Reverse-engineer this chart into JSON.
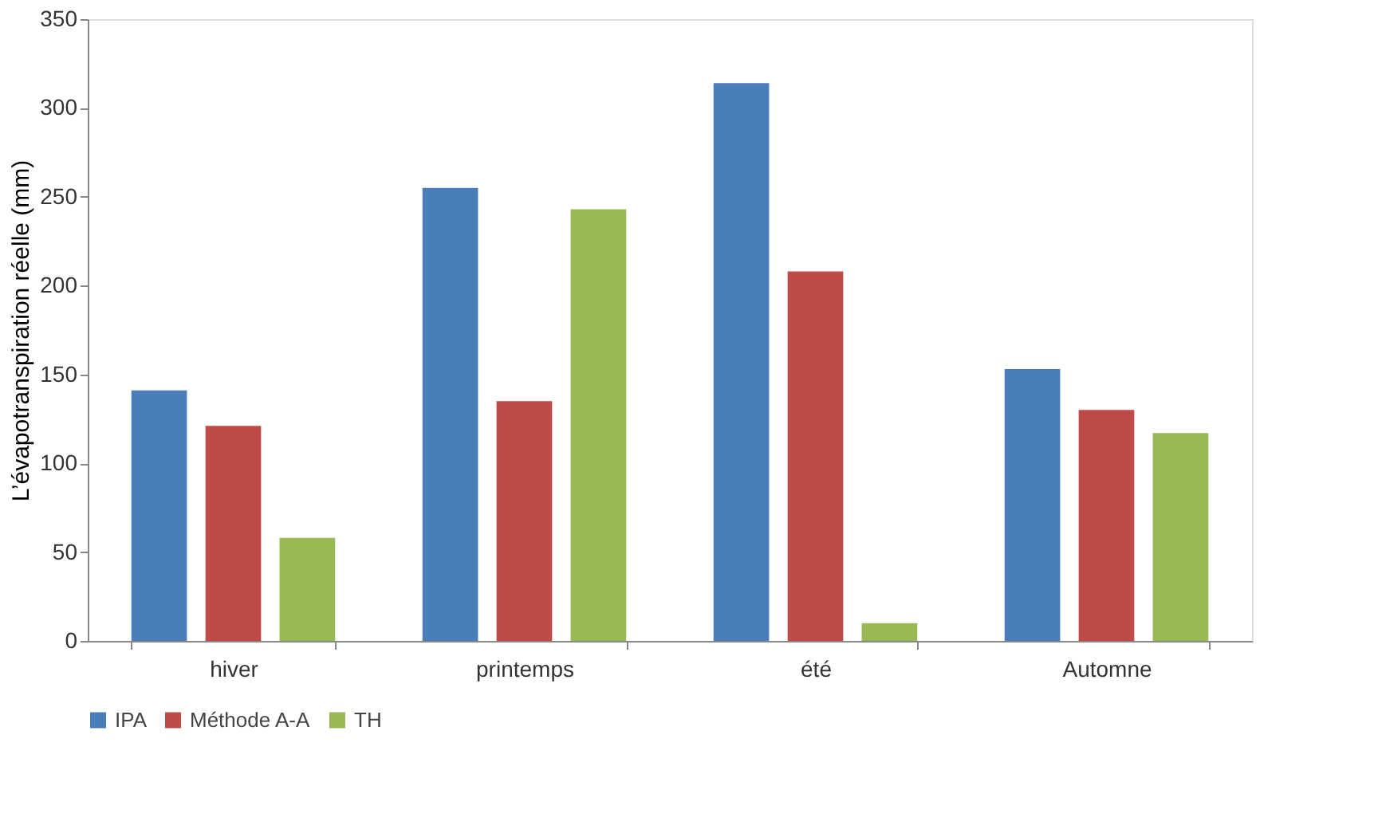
{
  "chart_data": {
    "type": "bar",
    "ylabel": "L’évapotranspiration réelle (mm)",
    "categories": [
      "hiver",
      "printemps",
      "été",
      "Automne"
    ],
    "series": [
      {
        "name": "IPA",
        "color": "#4a7ebb",
        "values": [
          141,
          255,
          314,
          153
        ]
      },
      {
        "name": "Méthode A-A",
        "color": "#be4b48",
        "values": [
          121,
          135,
          208,
          130
        ]
      },
      {
        "name": "TH",
        "color": "#98b954",
        "values": [
          58,
          243,
          10,
          117
        ]
      }
    ],
    "ylim": [
      0,
      350
    ],
    "yticks": [
      0,
      50,
      100,
      150,
      200,
      250,
      300,
      350
    ],
    "grid": false,
    "legend": "bottom"
  }
}
